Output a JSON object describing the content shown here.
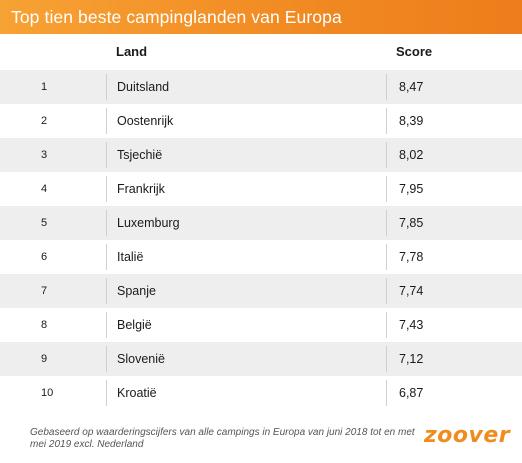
{
  "chart_data": {
    "type": "table",
    "title": "Top tien beste campinglanden van Europa",
    "columns": [
      "",
      "Land",
      "Score"
    ],
    "rows": [
      {
        "rank": "1",
        "land": "Duitsland",
        "score": "8,47"
      },
      {
        "rank": "2",
        "land": "Oostenrijk",
        "score": "8,39"
      },
      {
        "rank": "3",
        "land": "Tsjechië",
        "score": "8,02"
      },
      {
        "rank": "4",
        "land": "Frankrijk",
        "score": "7,95"
      },
      {
        "rank": "5",
        "land": "Luxemburg",
        "score": "7,85"
      },
      {
        "rank": "6",
        "land": "Italië",
        "score": "7,78"
      },
      {
        "rank": "7",
        "land": "Spanje",
        "score": "7,74"
      },
      {
        "rank": "8",
        "land": "België",
        "score": "7,43"
      },
      {
        "rank": "9",
        "land": "Slovenië",
        "score": "7,12"
      },
      {
        "rank": "10",
        "land": "Kroatië",
        "score": "6,87"
      }
    ],
    "footnote": "Gebaseerd op waarderingscijfers van alle campings in Europa van juni 2018 tot en met mei 2019 excl. Nederland",
    "logo": "zoover",
    "colors": {
      "accent": "#f18b23",
      "stripe": "#eeeeee"
    }
  }
}
